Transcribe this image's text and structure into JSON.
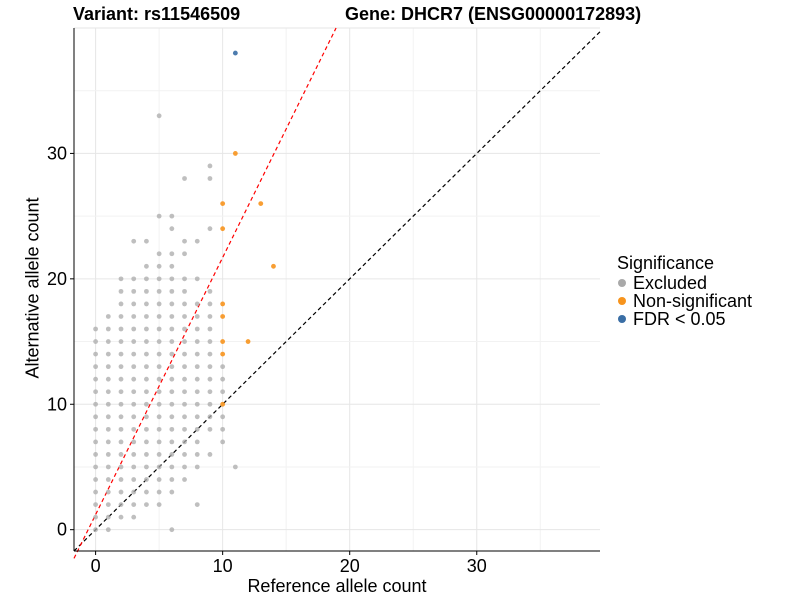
{
  "title_left": "Variant: rs11546509",
  "title_right": "Gene: DHCR7 (ENSG00000172893)",
  "legend": {
    "title": "Significance",
    "items": [
      {
        "label": "Excluded",
        "color": "#a9a9a9"
      },
      {
        "label": "Non-significant",
        "color": "#f7941d"
      },
      {
        "label": "FDR < 0.05",
        "color": "#3a6ea5"
      }
    ]
  },
  "chart_data": {
    "type": "scatter",
    "xlabel": "Reference allele count",
    "ylabel": "Alternative allele count",
    "xlim": [
      -1.7,
      39.7
    ],
    "ylim": [
      -1.7,
      40.0
    ],
    "x_ticks": [
      0,
      10,
      20,
      30
    ],
    "y_ticks": [
      0,
      10,
      20,
      30
    ],
    "grid": true,
    "legend_position": "right",
    "reference_lines": [
      {
        "name": "diagonal",
        "slope": 1,
        "intercept": 0,
        "style": "dashed",
        "color": "#000000"
      },
      {
        "name": "fit",
        "slope": 2.05,
        "intercept": 1.2,
        "style": "dashed",
        "color": "#ff0000"
      }
    ],
    "series": [
      {
        "name": "Excluded",
        "color": "#a9a9a9",
        "points": [
          [
            0,
            0
          ],
          [
            0,
            1
          ],
          [
            0,
            2
          ],
          [
            0,
            3
          ],
          [
            0,
            4
          ],
          [
            0,
            5
          ],
          [
            0,
            6
          ],
          [
            0,
            7
          ],
          [
            0,
            8
          ],
          [
            0,
            9
          ],
          [
            0,
            10
          ],
          [
            0,
            11
          ],
          [
            0,
            12
          ],
          [
            0,
            13
          ],
          [
            0,
            14
          ],
          [
            0,
            15
          ],
          [
            0,
            16
          ],
          [
            1,
            0
          ],
          [
            1,
            1
          ],
          [
            1,
            2
          ],
          [
            1,
            3
          ],
          [
            1,
            4
          ],
          [
            1,
            5
          ],
          [
            1,
            6
          ],
          [
            1,
            7
          ],
          [
            1,
            8
          ],
          [
            1,
            9
          ],
          [
            1,
            10
          ],
          [
            1,
            11
          ],
          [
            1,
            12
          ],
          [
            1,
            13
          ],
          [
            1,
            14
          ],
          [
            1,
            15
          ],
          [
            1,
            16
          ],
          [
            1,
            17
          ],
          [
            2,
            1
          ],
          [
            2,
            2
          ],
          [
            2,
            3
          ],
          [
            2,
            4
          ],
          [
            2,
            5
          ],
          [
            2,
            6
          ],
          [
            2,
            7
          ],
          [
            2,
            8
          ],
          [
            2,
            9
          ],
          [
            2,
            10
          ],
          [
            2,
            11
          ],
          [
            2,
            12
          ],
          [
            2,
            13
          ],
          [
            2,
            14
          ],
          [
            2,
            15
          ],
          [
            2,
            16
          ],
          [
            2,
            17
          ],
          [
            2,
            18
          ],
          [
            2,
            19
          ],
          [
            2,
            20
          ],
          [
            3,
            1
          ],
          [
            3,
            2
          ],
          [
            3,
            3
          ],
          [
            3,
            4
          ],
          [
            3,
            5
          ],
          [
            3,
            6
          ],
          [
            3,
            7
          ],
          [
            3,
            8
          ],
          [
            3,
            9
          ],
          [
            3,
            10
          ],
          [
            3,
            11
          ],
          [
            3,
            12
          ],
          [
            3,
            13
          ],
          [
            3,
            14
          ],
          [
            3,
            15
          ],
          [
            3,
            16
          ],
          [
            3,
            17
          ],
          [
            3,
            18
          ],
          [
            3,
            19
          ],
          [
            3,
            20
          ],
          [
            3,
            23
          ],
          [
            4,
            2
          ],
          [
            4,
            3
          ],
          [
            4,
            4
          ],
          [
            4,
            5
          ],
          [
            4,
            6
          ],
          [
            4,
            7
          ],
          [
            4,
            8
          ],
          [
            4,
            9
          ],
          [
            4,
            10
          ],
          [
            4,
            11
          ],
          [
            4,
            12
          ],
          [
            4,
            13
          ],
          [
            4,
            14
          ],
          [
            4,
            15
          ],
          [
            4,
            16
          ],
          [
            4,
            17
          ],
          [
            4,
            18
          ],
          [
            4,
            19
          ],
          [
            4,
            20
          ],
          [
            4,
            21
          ],
          [
            4,
            23
          ],
          [
            5,
            2
          ],
          [
            5,
            3
          ],
          [
            5,
            4
          ],
          [
            5,
            5
          ],
          [
            5,
            6
          ],
          [
            5,
            7
          ],
          [
            5,
            8
          ],
          [
            5,
            9
          ],
          [
            5,
            10
          ],
          [
            5,
            11
          ],
          [
            5,
            12
          ],
          [
            5,
            13
          ],
          [
            5,
            14
          ],
          [
            5,
            15
          ],
          [
            5,
            16
          ],
          [
            5,
            17
          ],
          [
            5,
            18
          ],
          [
            5,
            19
          ],
          [
            5,
            20
          ],
          [
            5,
            21
          ],
          [
            5,
            22
          ],
          [
            5,
            25
          ],
          [
            5,
            33
          ],
          [
            6,
            0
          ],
          [
            6,
            3
          ],
          [
            6,
            4
          ],
          [
            6,
            5
          ],
          [
            6,
            6
          ],
          [
            6,
            7
          ],
          [
            6,
            8
          ],
          [
            6,
            9
          ],
          [
            6,
            10
          ],
          [
            6,
            11
          ],
          [
            6,
            12
          ],
          [
            6,
            13
          ],
          [
            6,
            14
          ],
          [
            6,
            15
          ],
          [
            6,
            16
          ],
          [
            6,
            17
          ],
          [
            6,
            18
          ],
          [
            6,
            19
          ],
          [
            6,
            20
          ],
          [
            6,
            21
          ],
          [
            6,
            22
          ],
          [
            6,
            24
          ],
          [
            6,
            25
          ],
          [
            7,
            4
          ],
          [
            7,
            5
          ],
          [
            7,
            6
          ],
          [
            7,
            7
          ],
          [
            7,
            8
          ],
          [
            7,
            9
          ],
          [
            7,
            10
          ],
          [
            7,
            11
          ],
          [
            7,
            12
          ],
          [
            7,
            13
          ],
          [
            7,
            14
          ],
          [
            7,
            15
          ],
          [
            7,
            16
          ],
          [
            7,
            17
          ],
          [
            7,
            18
          ],
          [
            7,
            19
          ],
          [
            7,
            20
          ],
          [
            7,
            22
          ],
          [
            7,
            23
          ],
          [
            7,
            28
          ],
          [
            8,
            2
          ],
          [
            8,
            5
          ],
          [
            8,
            6
          ],
          [
            8,
            7
          ],
          [
            8,
            8
          ],
          [
            8,
            9
          ],
          [
            8,
            10
          ],
          [
            8,
            11
          ],
          [
            8,
            12
          ],
          [
            8,
            13
          ],
          [
            8,
            14
          ],
          [
            8,
            15
          ],
          [
            8,
            16
          ],
          [
            8,
            17
          ],
          [
            8,
            18
          ],
          [
            8,
            20
          ],
          [
            8,
            23
          ],
          [
            9,
            6
          ],
          [
            9,
            8
          ],
          [
            9,
            9
          ],
          [
            9,
            10
          ],
          [
            9,
            11
          ],
          [
            9,
            12
          ],
          [
            9,
            13
          ],
          [
            9,
            14
          ],
          [
            9,
            15
          ],
          [
            9,
            16
          ],
          [
            9,
            17
          ],
          [
            9,
            18
          ],
          [
            9,
            19
          ],
          [
            9,
            24
          ],
          [
            9,
            28
          ],
          [
            9,
            29
          ],
          [
            10,
            7
          ],
          [
            10,
            8
          ],
          [
            10,
            9
          ],
          [
            10,
            11
          ],
          [
            10,
            12
          ],
          [
            10,
            13
          ],
          [
            11,
            5
          ]
        ]
      },
      {
        "name": "Non-significant",
        "color": "#f7941d",
        "points": [
          [
            11,
            30
          ],
          [
            10,
            26
          ],
          [
            13,
            26
          ],
          [
            10,
            24
          ],
          [
            14,
            21
          ],
          [
            10,
            18
          ],
          [
            10,
            17
          ],
          [
            10,
            15
          ],
          [
            12,
            15
          ],
          [
            10,
            14
          ],
          [
            10,
            10
          ]
        ]
      },
      {
        "name": "FDR < 0.05",
        "color": "#3a6ea5",
        "points": [
          [
            11,
            38
          ]
        ]
      }
    ]
  }
}
